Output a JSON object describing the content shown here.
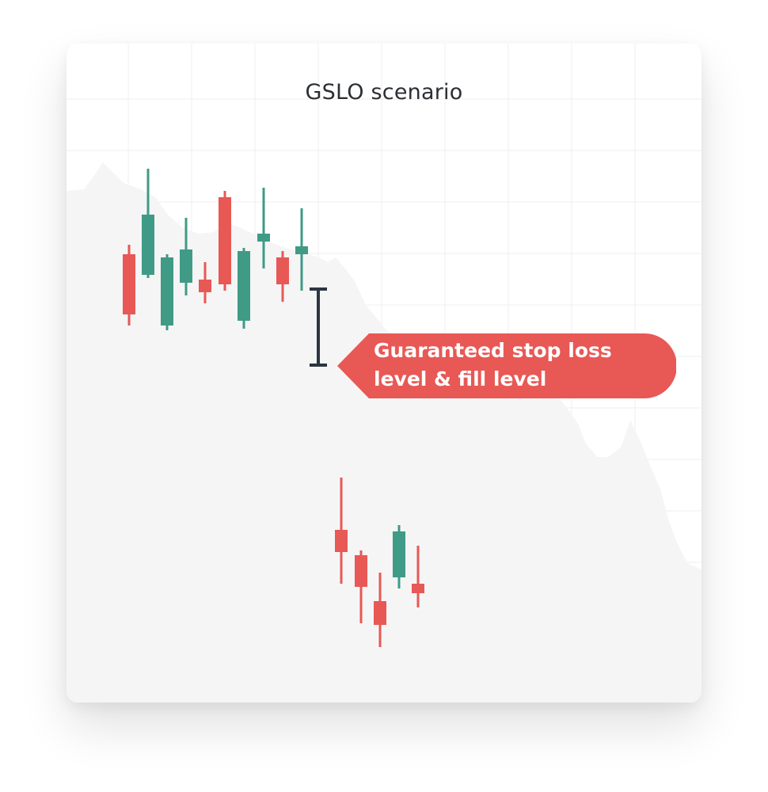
{
  "diagram": {
    "title": "GSLO scenario",
    "callout": {
      "line1": "Guaranteed stop loss",
      "line2": "level & fill level"
    },
    "colors": {
      "bull": "#3f9a86",
      "bear": "#e85855",
      "marker": "#2c3540",
      "callout_bg": "#e85855",
      "area": "#f6f6f6",
      "grid": "#eeeeee",
      "title": "#2b2f33"
    }
  }
}
